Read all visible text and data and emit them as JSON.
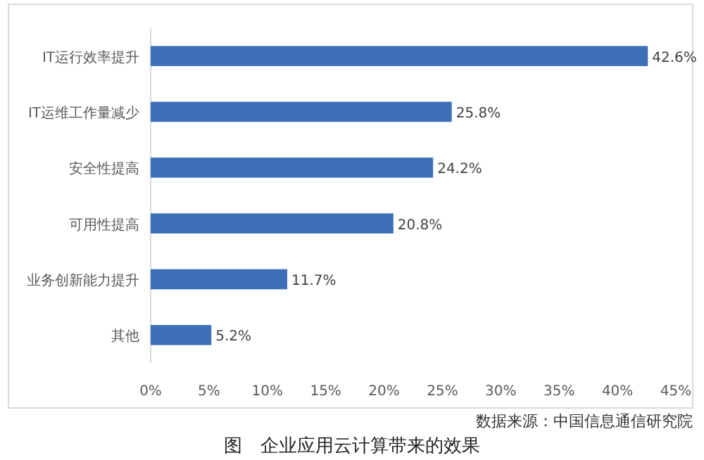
{
  "chart_data": {
    "type": "bar",
    "orientation": "horizontal",
    "title": "图　企业应用云计算带来的效果",
    "categories": [
      "IT运行效率提升",
      "IT运维工作量减少",
      "安全性提高",
      "可用性提高",
      "业务创新能力提升",
      "其他"
    ],
    "values": [
      42.6,
      25.8,
      24.2,
      20.8,
      11.7,
      5.2
    ],
    "value_labels": [
      "42.6%",
      "25.8%",
      "24.2%",
      "20.8%",
      "11.7%",
      "5.2%"
    ],
    "color": "#3d70b6",
    "xlim": [
      0,
      45
    ],
    "xticks": [
      {
        "value": 0,
        "label": "0%"
      },
      {
        "value": 5,
        "label": "5%"
      },
      {
        "value": 10,
        "label": "10%"
      },
      {
        "value": 15,
        "label": "15%"
      },
      {
        "value": 20,
        "label": "20%"
      },
      {
        "value": 25,
        "label": "25%"
      },
      {
        "value": 30,
        "label": "30%"
      },
      {
        "value": 35,
        "label": "35%"
      },
      {
        "value": 40,
        "label": "40%"
      },
      {
        "value": 45,
        "label": "45%"
      }
    ],
    "annotations": [
      "数据来源：中国信息通信研究院"
    ]
  }
}
